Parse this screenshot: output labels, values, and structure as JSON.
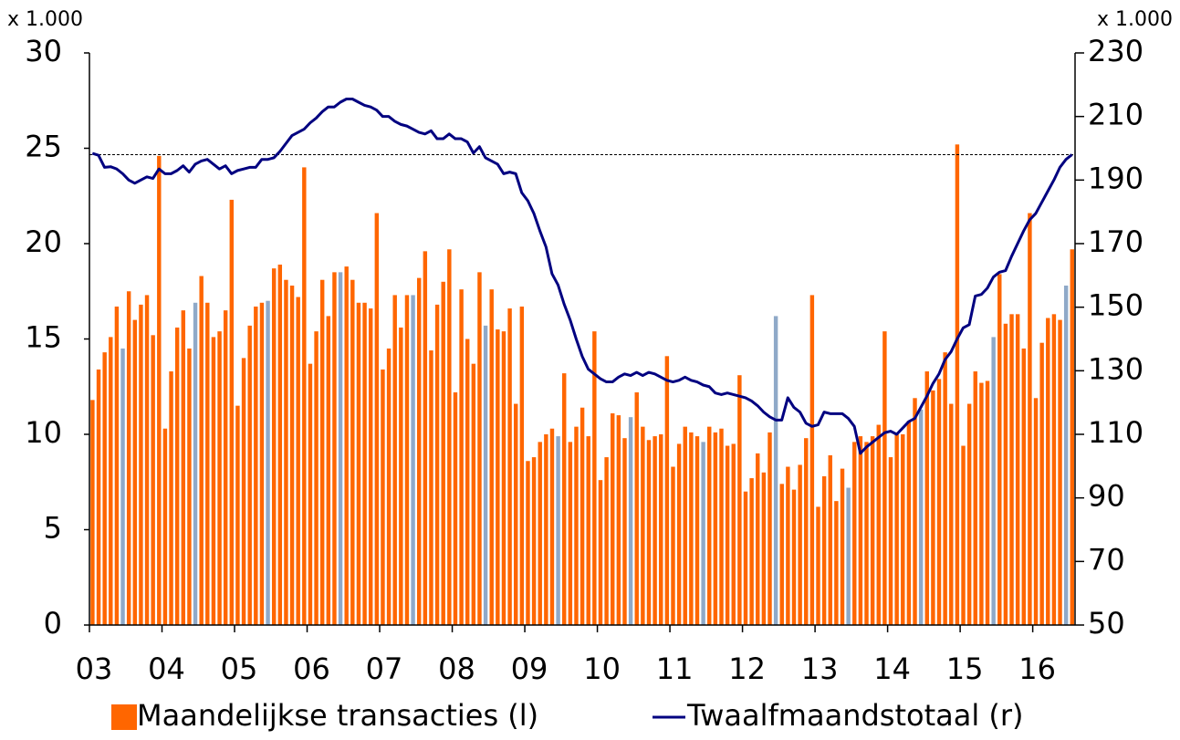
{
  "chart_data": {
    "type": "bar_line",
    "y_unit": "x 1.000",
    "y2_unit": "x 1.000",
    "categories": [
      "03",
      null,
      null,
      null,
      null,
      null,
      null,
      null,
      null,
      null,
      null,
      null,
      "04",
      null,
      null,
      null,
      null,
      null,
      null,
      null,
      null,
      null,
      null,
      null,
      "05",
      null,
      null,
      null,
      null,
      null,
      null,
      null,
      null,
      null,
      null,
      null,
      "06",
      null,
      null,
      null,
      null,
      null,
      null,
      null,
      null,
      null,
      null,
      null,
      "07",
      null,
      null,
      null,
      null,
      null,
      null,
      null,
      null,
      null,
      null,
      null,
      "08",
      null,
      null,
      null,
      null,
      null,
      null,
      null,
      null,
      null,
      null,
      null,
      "09",
      null,
      null,
      null,
      null,
      null,
      null,
      null,
      null,
      null,
      null,
      null,
      "10",
      null,
      null,
      null,
      null,
      null,
      null,
      null,
      null,
      null,
      null,
      null,
      "11",
      null,
      null,
      null,
      null,
      null,
      null,
      null,
      null,
      null,
      null,
      null,
      "12",
      null,
      null,
      null,
      null,
      null,
      null,
      null,
      null,
      null,
      null,
      null,
      "13",
      null,
      null,
      null,
      null,
      null,
      null,
      null,
      null,
      null,
      null,
      null,
      "14",
      null,
      null,
      null,
      null,
      null,
      null,
      null,
      null,
      null,
      null,
      null,
      "15",
      null,
      null,
      null,
      null,
      null,
      null,
      null,
      null,
      null,
      null,
      null,
      "16",
      null,
      null,
      null,
      null,
      null,
      null
    ],
    "series": [
      {
        "name": "Maandelijkse transacties (l)",
        "kind": "bar",
        "axis": "y",
        "color": "#ff6600",
        "colors": [
          "#ff6600",
          "#ff6600",
          "#ff6600",
          "#ff6600",
          "#ff6600",
          "#8fa9c8",
          "#ff6600",
          "#ff6600",
          "#ff6600",
          "#ff6600",
          "#ff6600",
          "#ff6600",
          "#ff6600",
          "#ff6600",
          "#ff6600",
          "#ff6600",
          "#ff6600",
          "#8fa9c8",
          "#ff6600",
          "#ff6600",
          "#ff6600",
          "#ff6600",
          "#ff6600",
          "#ff6600",
          "#ff6600",
          "#ff6600",
          "#ff6600",
          "#ff6600",
          "#ff6600",
          "#8fa9c8",
          "#ff6600",
          "#ff6600",
          "#ff6600",
          "#ff6600",
          "#ff6600",
          "#ff6600",
          "#ff6600",
          "#ff6600",
          "#ff6600",
          "#ff6600",
          "#ff6600",
          "#8fa9c8",
          "#ff6600",
          "#ff6600",
          "#ff6600",
          "#ff6600",
          "#ff6600",
          "#ff6600",
          "#ff6600",
          "#ff6600",
          "#ff6600",
          "#ff6600",
          "#ff6600",
          "#8fa9c8",
          "#ff6600",
          "#ff6600",
          "#ff6600",
          "#ff6600",
          "#ff6600",
          "#ff6600",
          "#ff6600",
          "#ff6600",
          "#ff6600",
          "#ff6600",
          "#ff6600",
          "#8fa9c8",
          "#ff6600",
          "#ff6600",
          "#ff6600",
          "#ff6600",
          "#ff6600",
          "#ff6600",
          "#ff6600",
          "#ff6600",
          "#ff6600",
          "#ff6600",
          "#ff6600",
          "#8fa9c8",
          "#ff6600",
          "#ff6600",
          "#ff6600",
          "#ff6600",
          "#ff6600",
          "#ff6600",
          "#ff6600",
          "#ff6600",
          "#ff6600",
          "#ff6600",
          "#ff6600",
          "#8fa9c8",
          "#ff6600",
          "#ff6600",
          "#ff6600",
          "#ff6600",
          "#ff6600",
          "#ff6600",
          "#ff6600",
          "#ff6600",
          "#ff6600",
          "#ff6600",
          "#ff6600",
          "#8fa9c8",
          "#ff6600",
          "#ff6600",
          "#ff6600",
          "#ff6600",
          "#ff6600",
          "#ff6600",
          "#ff6600",
          "#ff6600",
          "#ff6600",
          "#ff6600",
          "#ff6600",
          "#8fa9c8",
          "#ff6600",
          "#ff6600",
          "#ff6600",
          "#ff6600",
          "#ff6600",
          "#ff6600",
          "#ff6600",
          "#ff6600",
          "#ff6600",
          "#ff6600",
          "#ff6600",
          "#8fa9c8",
          "#ff6600",
          "#ff6600",
          "#ff6600",
          "#ff6600",
          "#ff6600",
          "#ff6600",
          "#ff6600",
          "#ff6600",
          "#ff6600",
          "#ff6600",
          "#ff6600",
          "#8fa9c8",
          "#ff6600",
          "#ff6600",
          "#ff6600",
          "#ff6600",
          "#ff6600",
          "#ff6600",
          "#ff6600",
          "#ff6600",
          "#ff6600",
          "#ff6600",
          "#ff6600",
          "#8fa9c8",
          "#ff6600",
          "#ff6600",
          "#ff6600",
          "#ff6600",
          "#ff6600",
          "#ff6600",
          "#ff6600",
          "#ff6600",
          "#ff6600",
          "#ff6600",
          "#ff6600",
          "#8fa9c8",
          "#ff6600"
        ],
        "values": [
          11.8,
          13.4,
          14.3,
          15.1,
          16.7,
          14.5,
          17.5,
          16.0,
          16.8,
          17.3,
          15.2,
          24.6,
          10.3,
          13.3,
          15.6,
          16.5,
          14.5,
          16.9,
          18.3,
          16.9,
          15.1,
          15.4,
          16.5,
          22.3,
          11.5,
          14.0,
          15.7,
          16.7,
          16.9,
          17.0,
          18.7,
          18.9,
          18.1,
          17.8,
          17.2,
          24.0,
          13.7,
          15.4,
          18.1,
          16.2,
          18.5,
          18.5,
          18.8,
          18.1,
          16.9,
          16.9,
          16.6,
          21.6,
          13.4,
          14.5,
          17.3,
          15.6,
          17.3,
          17.3,
          18.2,
          19.6,
          14.4,
          16.8,
          18.0,
          19.7,
          12.2,
          17.6,
          15.0,
          13.7,
          18.5,
          15.7,
          17.6,
          15.5,
          15.4,
          16.6,
          11.6,
          16.7,
          8.6,
          8.8,
          9.6,
          10.0,
          10.3,
          9.9,
          13.2,
          9.6,
          10.4,
          11.4,
          9.9,
          15.4,
          7.6,
          8.8,
          11.1,
          11.0,
          9.8,
          10.9,
          12.2,
          10.4,
          9.7,
          9.9,
          10.0,
          14.1,
          8.3,
          9.5,
          10.4,
          10.1,
          9.9,
          9.6,
          10.4,
          10.1,
          10.3,
          9.4,
          9.5,
          13.1,
          7.0,
          7.7,
          9.0,
          8.0,
          10.1,
          16.2,
          7.4,
          8.3,
          7.1,
          8.4,
          9.8,
          17.3,
          6.2,
          7.8,
          8.9,
          6.5,
          8.2,
          7.2,
          9.6,
          9.9,
          9.6,
          9.9,
          10.5,
          15.4,
          8.8,
          10.0,
          10.0,
          10.7,
          11.9,
          11.3,
          13.3,
          12.3,
          12.9,
          14.3,
          11.6,
          25.2,
          9.4,
          11.6,
          13.3,
          12.7,
          12.8,
          15.1,
          18.4,
          15.8,
          16.3,
          16.3,
          14.5,
          21.6,
          11.9,
          14.8,
          16.1,
          16.3,
          16.0,
          17.8,
          19.7
        ]
      },
      {
        "name": "Twaalfmaandstotaal (r)",
        "kind": "line",
        "axis": "y2",
        "color": "#000080",
        "values": [
          198.4,
          197.8,
          194,
          194.2,
          193.5,
          192,
          190,
          189,
          190,
          191,
          190.5,
          193.5,
          192,
          192,
          193,
          194.5,
          192.5,
          195,
          196,
          196.5,
          195,
          193.5,
          194.5,
          192,
          193,
          193.5,
          194,
          194,
          196.5,
          196.5,
          197,
          199,
          201.5,
          204,
          205,
          206,
          208,
          209.5,
          211.5,
          213,
          213,
          214.5,
          215.5,
          215.5,
          214.5,
          213.5,
          213,
          212,
          210,
          210,
          208.5,
          207.5,
          207,
          206,
          205,
          204.5,
          205.5,
          203,
          203,
          204.5,
          203,
          203,
          202,
          198.5,
          200.5,
          197,
          196,
          195,
          192,
          192.5,
          192,
          186,
          183.5,
          179.5,
          174,
          169,
          160.5,
          157,
          151,
          146,
          140,
          134.5,
          130.5,
          129,
          127.5,
          126.5,
          126.5,
          128,
          129,
          128.5,
          129.5,
          128.5,
          129.5,
          129,
          128,
          127,
          126.5,
          127,
          128,
          127,
          126.5,
          125.5,
          125,
          123,
          122.5,
          123,
          122.5,
          122,
          121.5,
          120.5,
          119,
          117,
          115.5,
          114.5,
          114.5,
          121.5,
          118.5,
          117,
          113.5,
          112.5,
          113,
          117,
          116.5,
          116.5,
          116.5,
          115,
          112.5,
          104,
          106,
          107.5,
          109,
          110.5,
          111,
          110,
          112,
          114,
          115,
          118.5,
          122,
          126,
          129,
          133.5,
          136,
          140,
          143.5,
          144.5,
          153.5,
          154,
          156,
          159.5,
          161,
          161.5,
          166,
          170,
          174,
          177.5,
          179.5,
          183,
          186.5,
          190,
          194,
          196.5,
          198
        ]
      }
    ],
    "ylim": [
      0,
      30
    ],
    "yticks": [
      0,
      5,
      10,
      15,
      20,
      25,
      30
    ],
    "y2lim": [
      50,
      230
    ],
    "y2ticks": [
      50,
      70,
      90,
      110,
      130,
      150,
      170,
      190,
      210,
      230
    ],
    "reference_line": {
      "value": 198,
      "axis": "y2"
    },
    "legend": "bottom"
  }
}
